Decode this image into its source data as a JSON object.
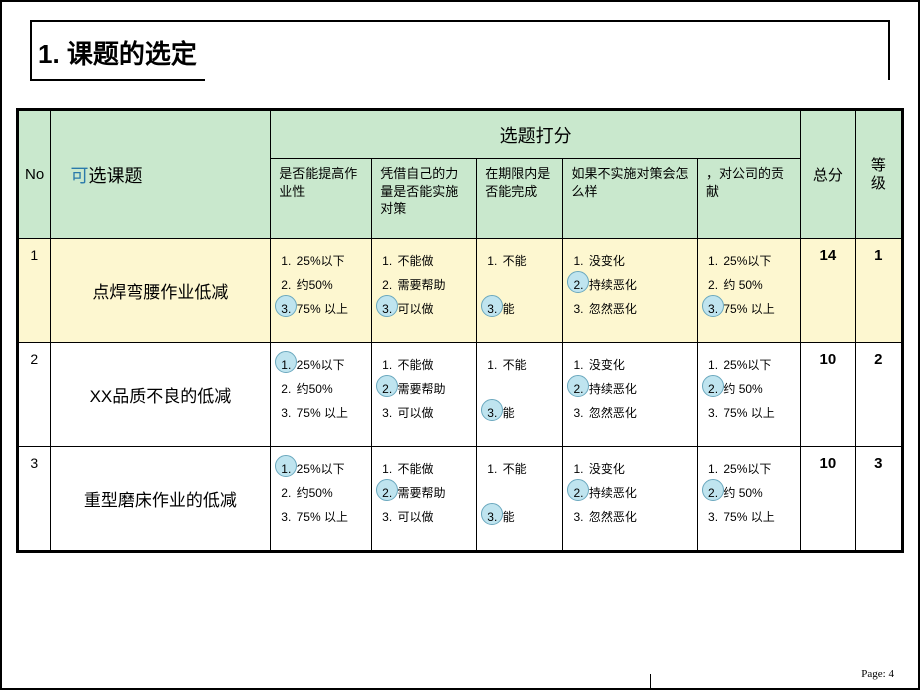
{
  "title": "1. 课题的选定",
  "page_label": "Page: 4",
  "colors": {
    "header_bg": "#c9e8cd",
    "highlight_bg": "#fdf7d0",
    "circle_fill": "#bfe4ef",
    "circle_border": "#6aa8be",
    "accent_text": "#2a7aaa"
  },
  "headers": {
    "no": "No",
    "topic_prefix": "可",
    "topic_rest": "选课题",
    "score_super": "选题打分",
    "total": "总分",
    "rank_a": "等",
    "rank_b": "级",
    "q1": "是否能提高作业性",
    "q2": "凭借自己的力量是否能实施对策",
    "q3": "在期限内是否能完成",
    "q4": "如果不实施对策会怎么样",
    "q5": "，对公司的贡献"
  },
  "option_sets": {
    "q1": [
      "25%以下",
      "约50%",
      "75% 以上"
    ],
    "q2": [
      "不能做",
      "需要帮助",
      "可以做"
    ],
    "q3": [
      "不能",
      "",
      "能"
    ],
    "q4": [
      "没变化",
      "持续恶化",
      "忽然恶化"
    ],
    "q5": [
      "25%以下",
      "约 50%",
      "75% 以上"
    ]
  },
  "rows": [
    {
      "no": "1",
      "topic": "点焊弯腰作业低减",
      "highlight": true,
      "selected": {
        "q1": 3,
        "q2": 3,
        "q3": 3,
        "q4": 2,
        "q5": 3
      },
      "total": "14",
      "rank": "1"
    },
    {
      "no": "2",
      "topic": "XX品质不良的低减",
      "highlight": false,
      "selected": {
        "q1": 1,
        "q2": 2,
        "q3": 3,
        "q4": 2,
        "q5": 2
      },
      "total": "10",
      "rank": "2"
    },
    {
      "no": "3",
      "topic": "重型磨床作业的低减",
      "highlight": false,
      "selected": {
        "q1": 1,
        "q2": 2,
        "q3": 3,
        "q4": 2,
        "q5": 2
      },
      "total": "10",
      "rank": "3"
    }
  ]
}
